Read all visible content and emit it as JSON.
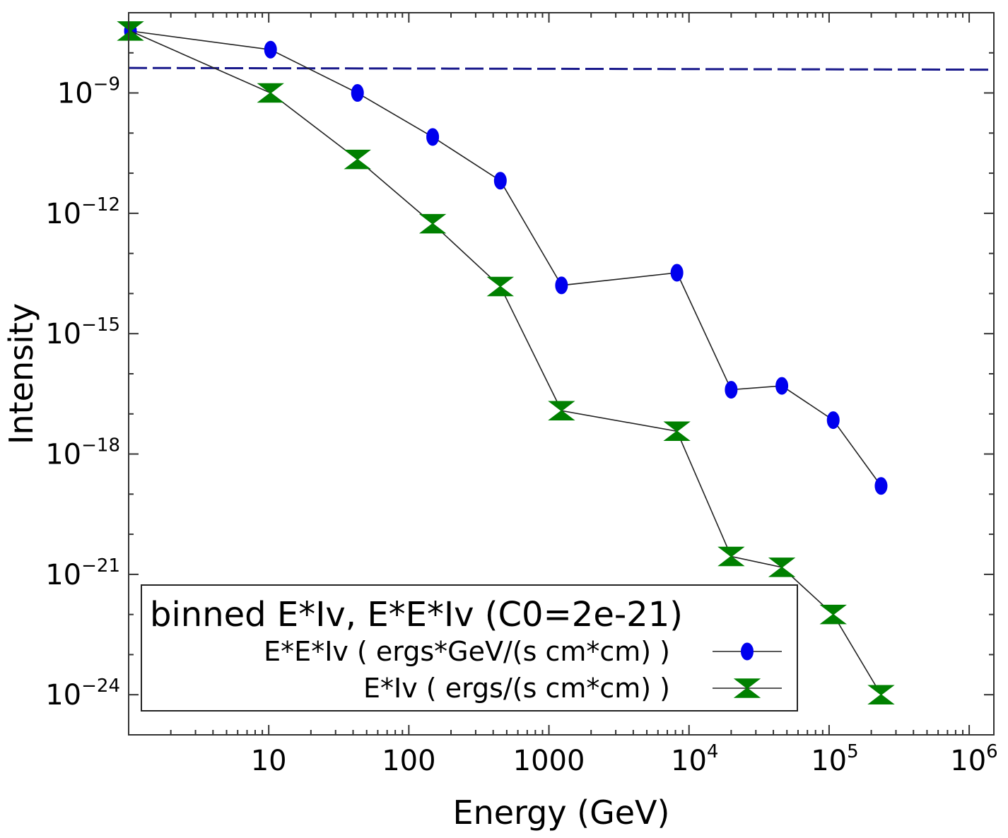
{
  "chart_data": {
    "type": "line",
    "xlabel": "Energy (GeV)",
    "ylabel": "Intensity",
    "x_scale": "log",
    "y_scale": "log",
    "xlim": [
      1.0,
      1500000
    ],
    "ylim": [
      1e-25,
      1e-07
    ],
    "x_ticks": [
      {
        "value": 10,
        "base": "10",
        "exp": ""
      },
      {
        "value": 100,
        "base": "100",
        "exp": ""
      },
      {
        "value": 1000,
        "base": "1000",
        "exp": ""
      },
      {
        "value": 10000,
        "base": "10",
        "exp": "4"
      },
      {
        "value": 100000,
        "base": "10",
        "exp": "5"
      },
      {
        "value": 1000000,
        "base": "10",
        "exp": "6"
      }
    ],
    "y_ticks": [
      {
        "value": 1e-09,
        "base": "10",
        "exp": "−9"
      },
      {
        "value": 1e-12,
        "base": "10",
        "exp": "−12"
      },
      {
        "value": 1e-15,
        "base": "10",
        "exp": "−15"
      },
      {
        "value": 1e-18,
        "base": "10",
        "exp": "−18"
      },
      {
        "value": 1e-21,
        "base": "10",
        "exp": "−21"
      },
      {
        "value": 1e-24,
        "base": "10",
        "exp": "−24"
      }
    ],
    "legend": {
      "title": "binned  E*Iv, E*E*Iv (C0=2e-21)",
      "placement": "bottom-left"
    },
    "series": [
      {
        "name": "E*E*Iv  ( ergs*GeV/(s cm*cm) )",
        "marker": "circle",
        "color": "#0000ee",
        "x": [
          1.03,
          10.3,
          43,
          148,
          450,
          1230,
          8200,
          20000,
          46000,
          107000,
          235000
        ],
        "y": [
          3.5e-08,
          1.2e-08,
          1e-09,
          8e-11,
          6.5e-12,
          1.6e-14,
          3.3e-14,
          4e-17,
          5e-17,
          7e-18,
          1.6e-19
        ]
      },
      {
        "name": "E*Iv  ( ergs/(s cm*cm) )",
        "marker": "hourglass",
        "color": "#008000",
        "x": [
          1.03,
          10.3,
          43,
          148,
          450,
          1230,
          8200,
          20000,
          46000,
          107000,
          235000
        ],
        "y": [
          3.5e-08,
          1e-09,
          2.2e-11,
          5.5e-13,
          1.5e-14,
          1.2e-17,
          3.7e-18,
          2.8e-21,
          1.5e-21,
          1e-22,
          1e-24
        ]
      }
    ],
    "reference_line": {
      "style": "dashed",
      "color": "#1a1a8c",
      "y_start": 4.2e-09,
      "y_end": 3.8e-09
    }
  }
}
